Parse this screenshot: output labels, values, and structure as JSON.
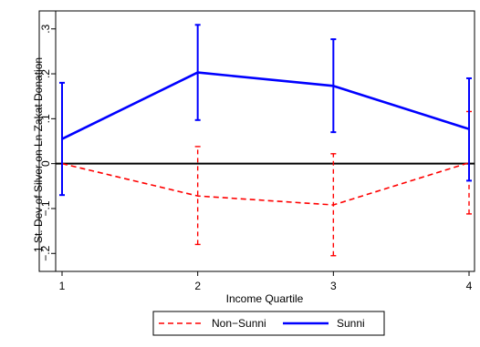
{
  "chart_data": {
    "type": "line",
    "title": "",
    "xlabel": "Income Quartile",
    "ylabel": "1 St. Dev of Silver on Ln Zakat Donation",
    "x": [
      1,
      2,
      3,
      4
    ],
    "x_ticks": [
      "1",
      "2",
      "3",
      "4"
    ],
    "y_ticks": [
      {
        "value": -0.2,
        "label": "−.2"
      },
      {
        "value": -0.1,
        "label": "−.1"
      },
      {
        "value": 0,
        "label": "0"
      },
      {
        "value": 0.1,
        "label": ".1"
      },
      {
        "value": 0.2,
        "label": ".2"
      },
      {
        "value": 0.3,
        "label": ".3"
      }
    ],
    "xlim": [
      1,
      4
    ],
    "ylim": [
      -0.24,
      0.34
    ],
    "zero_line": 0,
    "grid": false,
    "legend_position": "bottom",
    "series": [
      {
        "name": "Non−Sunni",
        "color": "#ff0000",
        "style": "dashed",
        "values": [
          0,
          -0.072,
          -0.092,
          0.002
        ],
        "ci_low": [
          0,
          -0.18,
          -0.205,
          -0.112
        ],
        "ci_high": [
          0,
          0.038,
          0.022,
          0.116
        ]
      },
      {
        "name": "Sunni",
        "color": "#0000ff",
        "style": "solid",
        "values": [
          0.055,
          0.203,
          0.173,
          0.077
        ],
        "ci_low": [
          -0.07,
          0.097,
          0.07,
          -0.038
        ],
        "ci_high": [
          0.18,
          0.309,
          0.277,
          0.19
        ]
      }
    ]
  }
}
